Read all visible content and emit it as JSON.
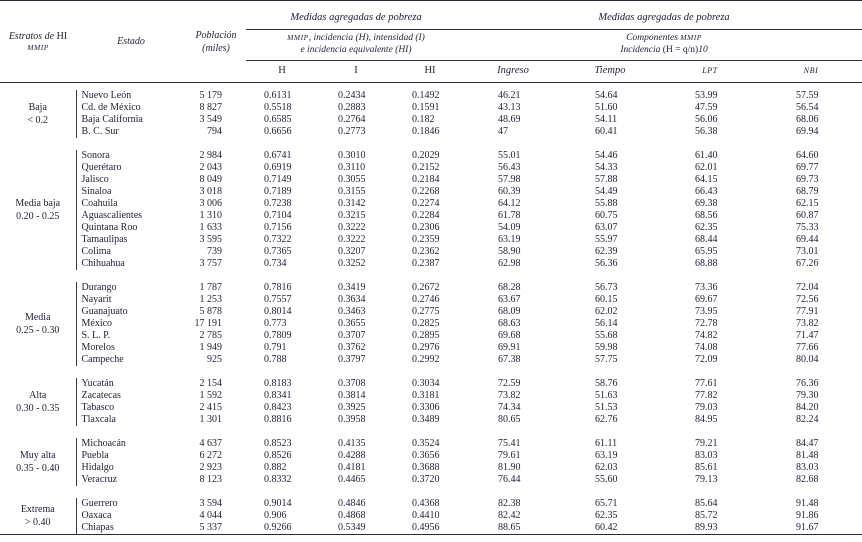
{
  "table": {
    "header": {
      "strata_label_italic": "Estratos de ",
      "strata_label_roman": "HI",
      "strata_label_line2": "MMIP",
      "estado_label": "Estado",
      "poblacion_label_line1": "Población",
      "poblacion_label_line2": "(miles)",
      "group_left_title": "Medidas agregadas de pobreza",
      "group_right_title": "Medidas agregadas de pobreza",
      "sub_left_smallcaps": "MMIP",
      "sub_left_line1_rest": ", incidencia (H), intensidad (I)",
      "sub_left_line2": "e incidencia equivalente (HI)",
      "sub_right_line1_prefix": "Componentes ",
      "sub_right_line1_smallcaps": "MMIP",
      "sub_right_line2_italic": "Incidencia",
      "sub_right_line2_roman": " (H = q/n)",
      "sub_right_line2_note": "10",
      "col_h": "H",
      "col_i": "I",
      "col_hi": "HI",
      "col_ingreso": "Ingreso",
      "col_tiempo": "Tiempo",
      "col_lpt": "LPT",
      "col_nbi": "NBI"
    },
    "groups": [
      {
        "stratum": "Baja",
        "range": "< 0.2",
        "states": [
          {
            "estado": "Nuevo León",
            "poblacion": "5 179",
            "h": "0.6131",
            "i": "0.2434",
            "hi": "0.1492",
            "ingreso": "46.21",
            "tiempo": "54.64",
            "lpt": "53.99",
            "nbi": "57.59"
          },
          {
            "estado": "Cd. de México",
            "poblacion": "8 827",
            "h": "0.5518",
            "i": "0.2883",
            "hi": "0.1591",
            "ingreso": "43.13",
            "tiempo": "51.60",
            "lpt": "47.59",
            "nbi": "56.54"
          },
          {
            "estado": "Baja California",
            "poblacion": "3 549",
            "h": "0.6585",
            "i": "0.2764",
            "hi": "0.182",
            "ingreso": "48.69",
            "tiempo": "54.11",
            "lpt": "56.06",
            "nbi": "68.06"
          },
          {
            "estado": "B. C. Sur",
            "poblacion": "794",
            "h": "0.6656",
            "i": "0.2773",
            "hi": "0.1846",
            "ingreso": "47",
            "tiempo": "60.41",
            "lpt": "56.38",
            "nbi": "69.94"
          }
        ]
      },
      {
        "stratum": "Media baja",
        "range": "0.20 - 0.25",
        "states": [
          {
            "estado": "Sonora",
            "poblacion": "2 984",
            "h": "0.6741",
            "i": "0.3010",
            "hi": "0.2029",
            "ingreso": "55.01",
            "tiempo": "54.46",
            "lpt": "61.40",
            "nbi": "64.60"
          },
          {
            "estado": "Querétaro",
            "poblacion": "2 043",
            "h": "0.6919",
            "i": "0.3110",
            "hi": "0.2152",
            "ingreso": "56.43",
            "tiempo": "54.33",
            "lpt": "62.01",
            "nbi": "69.77"
          },
          {
            "estado": "Jalisco",
            "poblacion": "8 049",
            "h": "0.7149",
            "i": "0.3055",
            "hi": "0.2184",
            "ingreso": "57.98",
            "tiempo": "57.88",
            "lpt": "64.15",
            "nbi": "69.73"
          },
          {
            "estado": "Sinaloa",
            "poblacion": "3 018",
            "h": "0.7189",
            "i": "0.3155",
            "hi": "0.2268",
            "ingreso": "60.39",
            "tiempo": "54.49",
            "lpt": "66.43",
            "nbi": "68.79"
          },
          {
            "estado": "Coahuila",
            "poblacion": "3 006",
            "h": "0.7238",
            "i": "0.3142",
            "hi": "0.2274",
            "ingreso": "64.12",
            "tiempo": "55.88",
            "lpt": "69.38",
            "nbi": "62.15"
          },
          {
            "estado": "Aguascalientes",
            "poblacion": "1 310",
            "h": "0.7104",
            "i": "0.3215",
            "hi": "0.2284",
            "ingreso": "61.78",
            "tiempo": "60.75",
            "lpt": "68.56",
            "nbi": "60.87"
          },
          {
            "estado": "Quintana Roo",
            "poblacion": "1 633",
            "h": "0.7156",
            "i": "0.3222",
            "hi": "0.2306",
            "ingreso": "54.09",
            "tiempo": "63.07",
            "lpt": "62.35",
            "nbi": "75.33"
          },
          {
            "estado": "Tamaulipas",
            "poblacion": "3 595",
            "h": "0.7322",
            "i": "0.3222",
            "hi": "0.2359",
            "ingreso": "63.19",
            "tiempo": "55.97",
            "lpt": "68.44",
            "nbi": "69.44"
          },
          {
            "estado": "Colima",
            "poblacion": "739",
            "h": "0.7365",
            "i": "0.3207",
            "hi": "0.2362",
            "ingreso": "58.90",
            "tiempo": "62.39",
            "lpt": "65.95",
            "nbi": "73.01"
          },
          {
            "estado": "Chihuahua",
            "poblacion": "3 757",
            "h": "0.734",
            "i": "0.3252",
            "hi": "0.2387",
            "ingreso": "62.98",
            "tiempo": "56.36",
            "lpt": "68.88",
            "nbi": "67.26"
          }
        ]
      },
      {
        "stratum": "Media",
        "range": "0.25 - 0.30",
        "states": [
          {
            "estado": "Durango",
            "poblacion": "1 787",
            "h": "0.7816",
            "i": "0.3419",
            "hi": "0.2672",
            "ingreso": "68.28",
            "tiempo": "56.73",
            "lpt": "73.36",
            "nbi": "72.04"
          },
          {
            "estado": "Nayarit",
            "poblacion": "1 253",
            "h": "0.7557",
            "i": "0.3634",
            "hi": "0.2746",
            "ingreso": "63.67",
            "tiempo": "60.15",
            "lpt": "69.67",
            "nbi": "72.56"
          },
          {
            "estado": "Guanajuato",
            "poblacion": "5 878",
            "h": "0.8014",
            "i": "0.3463",
            "hi": "0.2775",
            "ingreso": "68.09",
            "tiempo": "62.02",
            "lpt": "73.95",
            "nbi": "77.91"
          },
          {
            "estado": "México",
            "poblacion": "17 191",
            "h": "0.773",
            "i": "0.3655",
            "hi": "0.2825",
            "ingreso": "68.63",
            "tiempo": "56.14",
            "lpt": "72.78",
            "nbi": "73.82"
          },
          {
            "estado": "S. L. P.",
            "poblacion": "2 785",
            "h": "0.7809",
            "i": "0.3707",
            "hi": "0.2895",
            "ingreso": "69.68",
            "tiempo": "55.68",
            "lpt": "74.82",
            "nbi": "71.47"
          },
          {
            "estado": "Morelos",
            "poblacion": "1 949",
            "h": "0.791",
            "i": "0.3762",
            "hi": "0.2976",
            "ingreso": "69.91",
            "tiempo": "59.98",
            "lpt": "74.08",
            "nbi": "77.66"
          },
          {
            "estado": "Campeche",
            "poblacion": "925",
            "h": "0.788",
            "i": "0.3797",
            "hi": "0.2992",
            "ingreso": "67.38",
            "tiempo": "57.75",
            "lpt": "72.09",
            "nbi": "80.04"
          }
        ]
      },
      {
        "stratum": "Alta",
        "range": "0.30 - 0.35",
        "states": [
          {
            "estado": "Yucatán",
            "poblacion": "2 154",
            "h": "0.8183",
            "i": "0.3708",
            "hi": "0.3034",
            "ingreso": "72.59",
            "tiempo": "58.76",
            "lpt": "77.61",
            "nbi": "76.36"
          },
          {
            "estado": "Zacatecas",
            "poblacion": "1 592",
            "h": "0.8341",
            "i": "0.3814",
            "hi": "0.3181",
            "ingreso": "73.82",
            "tiempo": "51.63",
            "lpt": "77.82",
            "nbi": "79.30"
          },
          {
            "estado": "Tabasco",
            "poblacion": "2 415",
            "h": "0.8423",
            "i": "0.3925",
            "hi": "0.3306",
            "ingreso": "74.34",
            "tiempo": "51.53",
            "lpt": "79.03",
            "nbi": "84.20"
          },
          {
            "estado": "Tlaxcala",
            "poblacion": "1 301",
            "h": "0.8816",
            "i": "0.3958",
            "hi": "0.3489",
            "ingreso": "80.65",
            "tiempo": "62.76",
            "lpt": "84.95",
            "nbi": "82.24"
          }
        ]
      },
      {
        "stratum": "Muy alta",
        "range": "0.35 - 0.40",
        "states": [
          {
            "estado": "Michoacán",
            "poblacion": "4 637",
            "h": "0.8523",
            "i": "0.4135",
            "hi": "0.3524",
            "ingreso": "75.41",
            "tiempo": "61.11",
            "lpt": "79.21",
            "nbi": "84.47"
          },
          {
            "estado": "Puebla",
            "poblacion": "6 272",
            "h": "0.8526",
            "i": "0.4288",
            "hi": "0.3656",
            "ingreso": "79.61",
            "tiempo": "63.19",
            "lpt": "83.03",
            "nbi": "81.48"
          },
          {
            "estado": "Hidalgo",
            "poblacion": "2 923",
            "h": "0.882",
            "i": "0.4181",
            "hi": "0.3688",
            "ingreso": "81.90",
            "tiempo": "62.03",
            "lpt": "85.61",
            "nbi": "83.03"
          },
          {
            "estado": "Veracruz",
            "poblacion": "8 123",
            "h": "0.8332",
            "i": "0.4465",
            "hi": "0.3720",
            "ingreso": "76.44",
            "tiempo": "55.60",
            "lpt": "79.13",
            "nbi": "82.68"
          }
        ]
      },
      {
        "stratum": "Extrema",
        "range": "> 0.40",
        "states": [
          {
            "estado": "Guerrero",
            "poblacion": "3 594",
            "h": "0.9014",
            "i": "0.4846",
            "hi": "0.4368",
            "ingreso": "82.38",
            "tiempo": "65.71",
            "lpt": "85.64",
            "nbi": "91.48"
          },
          {
            "estado": "Oaxaca",
            "poblacion": "4 044",
            "h": "0.906",
            "i": "0.4868",
            "hi": "0.4410",
            "ingreso": "82.42",
            "tiempo": "62.35",
            "lpt": "85.72",
            "nbi": "91.86"
          },
          {
            "estado": "Chiapas",
            "poblacion": "5 337",
            "h": "0.9266",
            "i": "0.5349",
            "hi": "0.4956",
            "ingreso": "88.65",
            "tiempo": "60.42",
            "lpt": "89.93",
            "nbi": "91.67"
          }
        ]
      }
    ]
  }
}
